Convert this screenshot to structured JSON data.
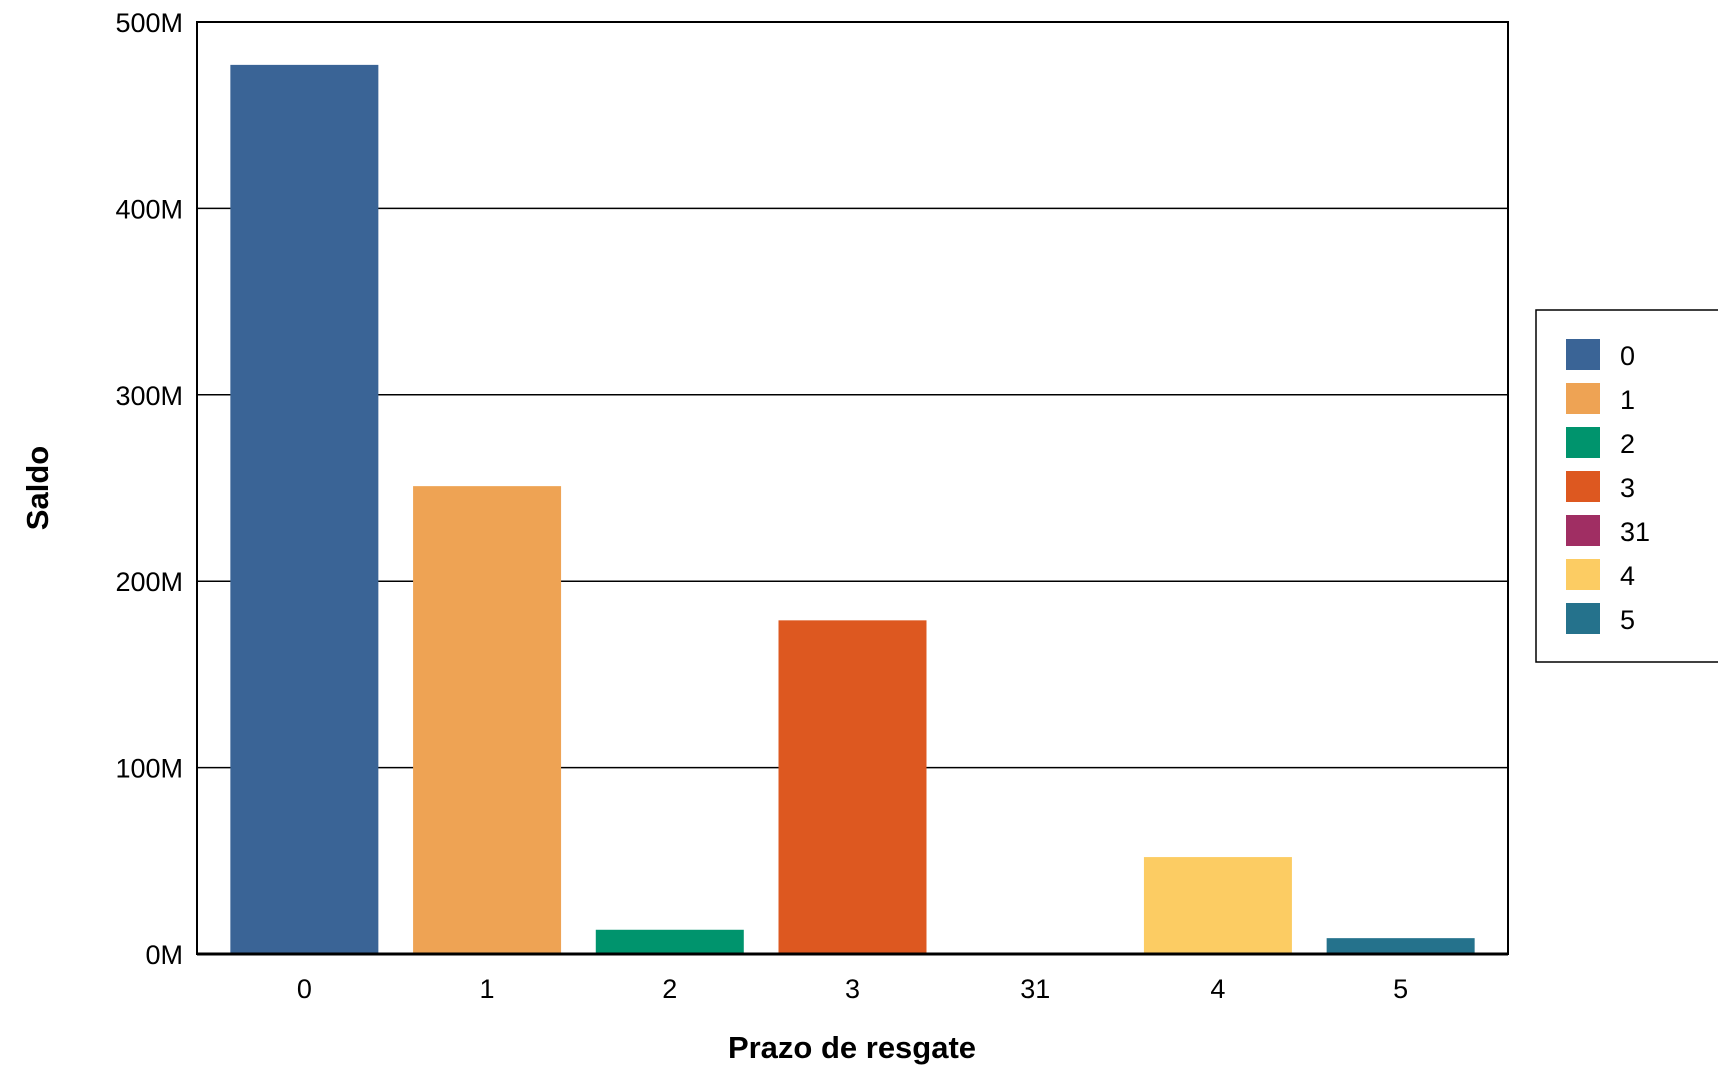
{
  "chart_data": {
    "type": "bar",
    "title": "",
    "xlabel": "Prazo de resgate",
    "ylabel": "Saldo",
    "categories": [
      "0",
      "1",
      "2",
      "3",
      "31",
      "4",
      "5"
    ],
    "values": [
      477000000,
      251000000,
      13000000,
      179000000,
      300000,
      52000000,
      8500000
    ],
    "colors": [
      "#3A6496",
      "#EEA354",
      "#00946D",
      "#DD5820",
      "#A02E63",
      "#FCCC63",
      "#25728C"
    ],
    "ylim": [
      0,
      500000000
    ],
    "yticks": [
      0,
      100000000,
      200000000,
      300000000,
      400000000,
      500000000
    ],
    "ytick_labels": [
      "0M",
      "100M",
      "200M",
      "300M",
      "400M",
      "500M"
    ],
    "grid": true,
    "legend": {
      "position": "right",
      "entries": [
        "0",
        "1",
        "2",
        "3",
        "31",
        "4",
        "5"
      ]
    }
  }
}
